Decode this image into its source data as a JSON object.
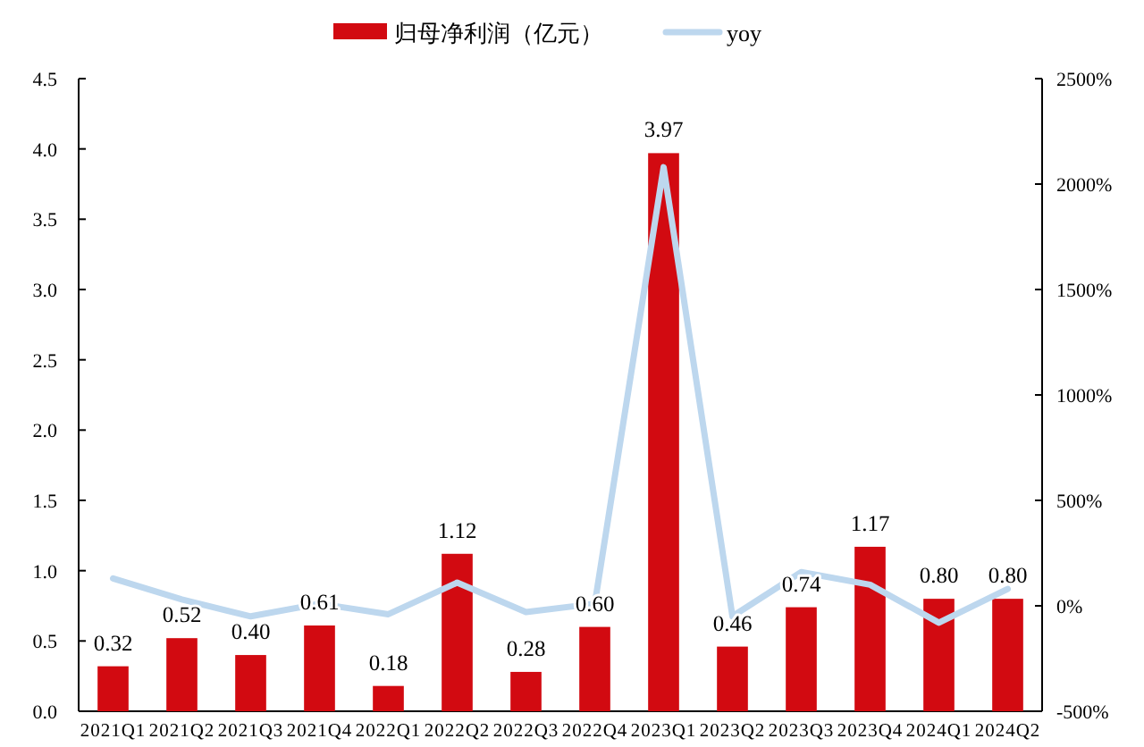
{
  "chart_data": {
    "type": "bar",
    "categories": [
      "2021Q1",
      "2021Q2",
      "2021Q3",
      "2021Q4",
      "2022Q1",
      "2022Q2",
      "2022Q3",
      "2022Q4",
      "2023Q1",
      "2023Q2",
      "2023Q3",
      "2023Q4",
      "2024Q1",
      "2024Q2"
    ],
    "series": [
      {
        "name": "归母净利润（亿元）",
        "color": "#d20a11",
        "values": [
          0.32,
          0.52,
          0.4,
          0.61,
          0.18,
          1.12,
          0.28,
          0.6,
          3.97,
          0.46,
          0.74,
          1.17,
          0.8,
          0.8
        ],
        "value_labels": [
          "0.32",
          "0.52",
          "0.40",
          "0.61",
          "0.18",
          "1.12",
          "0.28",
          "0.60",
          "3.97",
          "0.46",
          "0.74",
          "1.17",
          "0.80",
          "0.80"
        ]
      },
      {
        "name": "yoy",
        "type": "line",
        "axis": "y2",
        "color": "#bdd7ee",
        "values": [
          130,
          30,
          -50,
          10,
          -40,
          110,
          -30,
          10,
          2080,
          -50,
          160,
          100,
          -80,
          80
        ]
      }
    ],
    "ylim": [
      0,
      4.5
    ],
    "yticks": [
      {
        "value": 0,
        "label": "0.0"
      },
      {
        "value": 0.5,
        "label": "0.5"
      },
      {
        "value": 1,
        "label": "1.0"
      },
      {
        "value": 1.5,
        "label": "1.5"
      },
      {
        "value": 2,
        "label": "2.0"
      },
      {
        "value": 2.5,
        "label": "2.5"
      },
      {
        "value": 3,
        "label": "3.0"
      },
      {
        "value": 3.5,
        "label": "3.5"
      },
      {
        "value": 4,
        "label": "4.0"
      },
      {
        "value": 4.5,
        "label": "4.5"
      }
    ],
    "y2lim": [
      -500,
      2500
    ],
    "y2ticks": [
      {
        "value": -500,
        "label": "-500%"
      },
      {
        "value": 0,
        "label": "0%"
      },
      {
        "value": 500,
        "label": "500%"
      },
      {
        "value": 1000,
        "label": "1000%"
      },
      {
        "value": 1500,
        "label": "1500%"
      },
      {
        "value": 2000,
        "label": "2000%"
      },
      {
        "value": 2500,
        "label": "2500%"
      }
    ],
    "legend": "top"
  }
}
